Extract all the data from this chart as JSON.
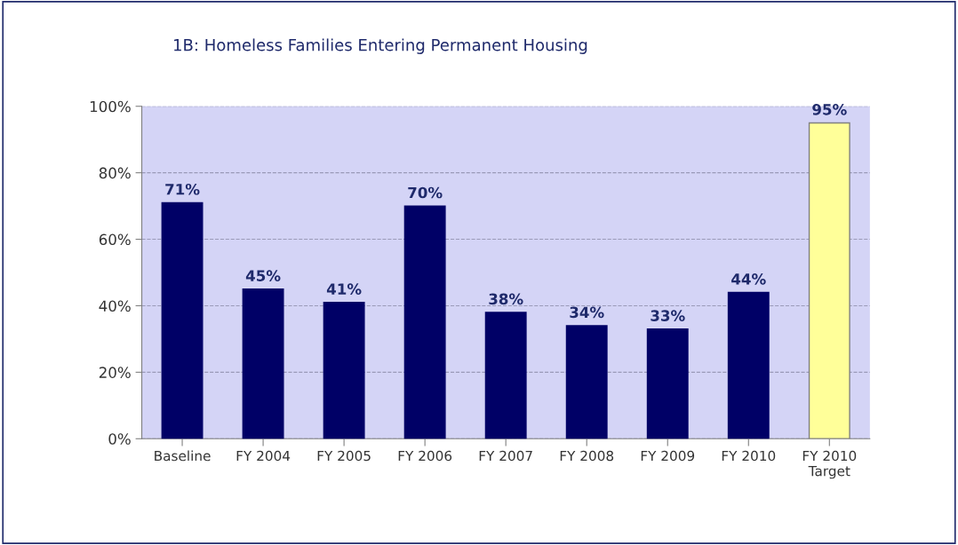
{
  "chart_data": {
    "type": "bar",
    "title": "1B: Homeless Families Entering Permanent Housing",
    "categories": [
      "Baseline",
      "FY 2004",
      "FY 2005",
      "FY 2006",
      "FY 2007",
      "FY 2008",
      "FY 2009",
      "FY 2010",
      "FY 2010\nTarget"
    ],
    "values": [
      71,
      45,
      41,
      70,
      38,
      34,
      33,
      44,
      95
    ],
    "colors": [
      "#000066",
      "#000066",
      "#000066",
      "#000066",
      "#000066",
      "#000066",
      "#000066",
      "#000066",
      "#ffff99"
    ],
    "value_labels": [
      "71%",
      "45%",
      "41%",
      "70%",
      "38%",
      "34%",
      "33%",
      "44%",
      "95%"
    ],
    "ylim": [
      0,
      100
    ],
    "yticks": [
      {
        "value": 0,
        "label": "0%"
      },
      {
        "value": 20,
        "label": "20%"
      },
      {
        "value": 40,
        "label": "40%"
      },
      {
        "value": 60,
        "label": "60%"
      },
      {
        "value": 80,
        "label": "80%"
      },
      {
        "value": 100,
        "label": "100%"
      }
    ],
    "grid": "y"
  }
}
